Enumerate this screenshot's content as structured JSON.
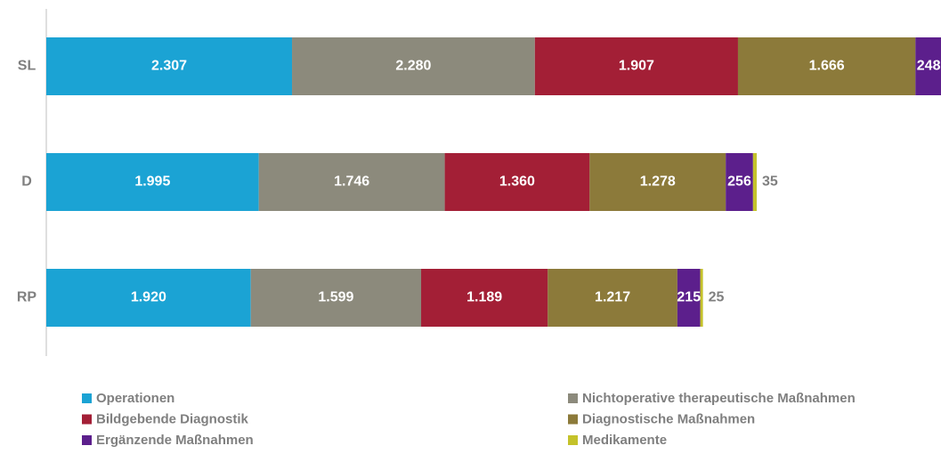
{
  "chart_data": {
    "type": "stacked-barh",
    "categories": [
      "SL",
      "D",
      "RP"
    ],
    "xlim": [
      0,
      8400
    ],
    "series": [
      {
        "name": "Operationen",
        "color": "#1ba3d4",
        "values": [
          2307,
          1995,
          1920
        ],
        "value_labels": [
          "2.307",
          "1.995",
          "1.920"
        ]
      },
      {
        "name": "Nichtoperative therapeutische Maßnahmen",
        "color": "#8c8a7c",
        "values": [
          2280,
          1746,
          1599
        ],
        "value_labels": [
          "2.280",
          "1.746",
          "1.599"
        ]
      },
      {
        "name": "Bildgebende Diagnostik",
        "color": "#a31f36",
        "values": [
          1907,
          1360,
          1189
        ],
        "value_labels": [
          "1.907",
          "1.360",
          "1.189"
        ]
      },
      {
        "name": "Diagnostische Maßnahmen",
        "color": "#8c7a3a",
        "values": [
          1666,
          1278,
          1217
        ],
        "value_labels": [
          "1.666",
          "1.278",
          "1.217"
        ]
      },
      {
        "name": "Ergänzende Maßnahmen",
        "color": "#5c1f8c",
        "values": [
          248,
          256,
          215
        ]
      },
      {
        "name": "Medikamente",
        "color": "#c4c22a",
        "values": [
          null,
          35,
          25
        ]
      }
    ]
  }
}
